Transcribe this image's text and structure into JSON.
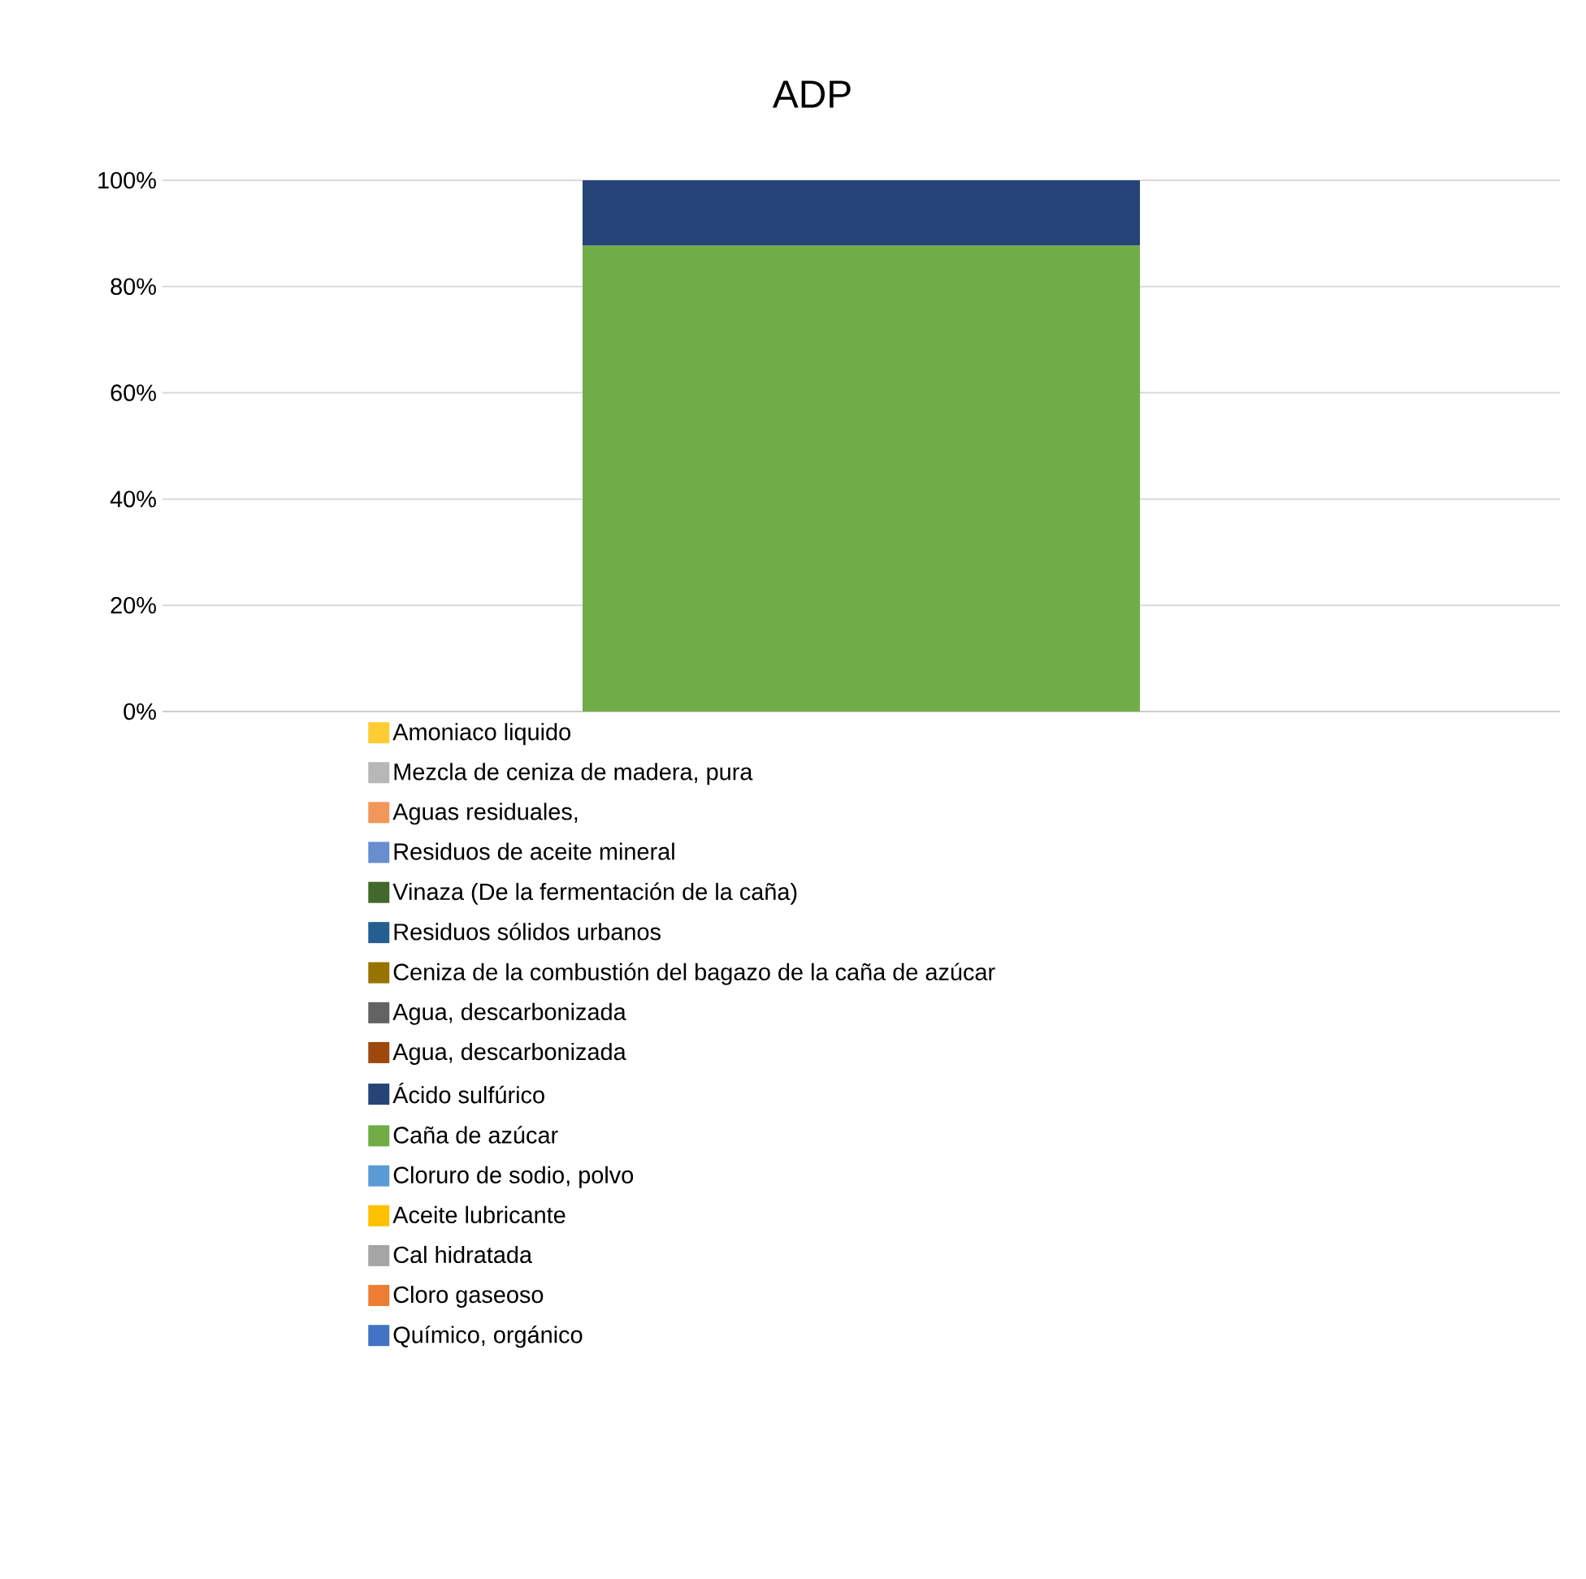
{
  "chart_data": {
    "type": "bar",
    "title": "ADP",
    "stacked": true,
    "categories": [
      null
    ],
    "ylim": [
      0,
      100
    ],
    "yticks": [
      {
        "value": 0,
        "label": "0%"
      },
      {
        "value": 20,
        "label": "20%"
      },
      {
        "value": 40,
        "label": "40%"
      },
      {
        "value": 60,
        "label": "60%"
      },
      {
        "value": 80,
        "label": "80%"
      },
      {
        "value": 100,
        "label": "100%"
      }
    ],
    "grid": "y",
    "legend": "bottom",
    "series": [
      {
        "name": "Químico, orgánico",
        "color": "#4472c4",
        "values": [
          0
        ]
      },
      {
        "name": "Cloro gaseoso",
        "color": "#ed7d31",
        "values": [
          0
        ]
      },
      {
        "name": "Cal hidratada",
        "color": "#a5a5a5",
        "values": [
          0
        ]
      },
      {
        "name": "Aceite lubricante",
        "color": "#ffc000",
        "values": [
          0
        ]
      },
      {
        "name": "Cloruro de sodio, polvo",
        "color": "#5b9bd5",
        "values": [
          0
        ]
      },
      {
        "name": "Caña de azúcar",
        "color": "#70ad47",
        "values": [
          87.7
        ]
      },
      {
        "name": "Ácido sulfúrico",
        "color": "#264478",
        "values": [
          12.3
        ]
      },
      {
        "name": "Agua, descarbonizada",
        "color": "#9e480e",
        "values": [
          0
        ]
      },
      {
        "name": "Agua, descarbonizada",
        "color": "#636363",
        "values": [
          0
        ]
      },
      {
        "name": "Ceniza de la combustión del bagazo de la caña de azúcar",
        "color": "#997300",
        "values": [
          0
        ]
      },
      {
        "name": "Residuos sólidos urbanos",
        "color": "#255e91",
        "values": [
          0
        ]
      },
      {
        "name": "Vinaza (De la fermentación de la caña)",
        "color": "#43682b",
        "values": [
          0
        ]
      },
      {
        "name": "Residuos de aceite mineral",
        "color": "#698ed0",
        "values": [
          0
        ]
      },
      {
        "name": "Aguas residuales,",
        "color": "#f1975a",
        "values": [
          0
        ]
      },
      {
        "name": "Mezcla de ceniza de madera, pura",
        "color": "#b7b7b7",
        "values": [
          0
        ]
      },
      {
        "name": "Amoniaco liquido",
        "color": "#ffcd33",
        "values": [
          0
        ]
      }
    ]
  }
}
